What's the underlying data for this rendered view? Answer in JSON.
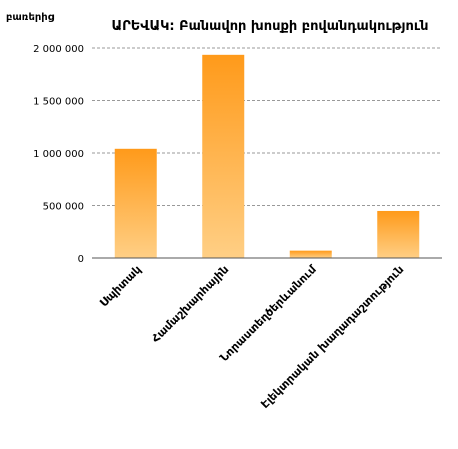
{
  "chart_data": {
    "type": "bar",
    "title": "ԱՐԵՎԱԿ:  Բանավոր խոսքի բովանդակություն",
    "ylabel": "բառերից",
    "categories": [
      "Սպիտակ",
      "Համաշխարհային",
      "Նորաստեղծերևանում",
      "Էլեկտրական  խաղադաշտություն"
    ],
    "values": [
      1040000,
      1935000,
      70000,
      448000
    ],
    "ylim": [
      0,
      2000000
    ],
    "yticks": [
      0,
      500000,
      1000000,
      1500000,
      2000000
    ],
    "ytick_labels": [
      "0",
      "500 000",
      "1 000 000",
      "1 500 000",
      "2 000 000"
    ],
    "grid": true,
    "legend": "none",
    "colors": {
      "bar_top": "#ff9a1a",
      "bar_bottom": "#ffcf85",
      "grid": "#999999",
      "axis": "#555555"
    }
  }
}
